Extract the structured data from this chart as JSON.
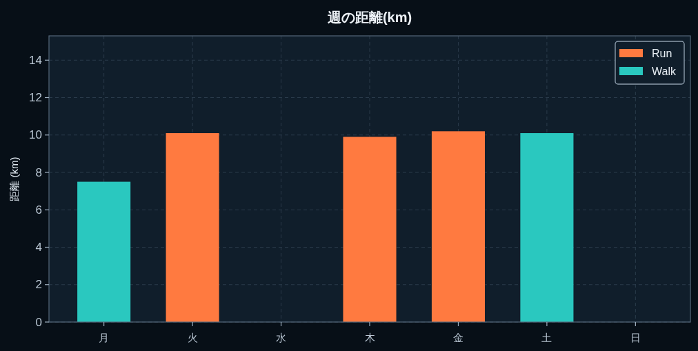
{
  "chart_data": {
    "type": "bar",
    "title": "週の距離(km)",
    "ylabel": "距離 (km)",
    "categories": [
      "月",
      "火",
      "水",
      "木",
      "金",
      "土",
      "日"
    ],
    "series": [
      {
        "name": "Run",
        "color": "#ff7a40",
        "values": [
          null,
          10.1,
          null,
          9.9,
          10.2,
          null,
          null
        ]
      },
      {
        "name": "Walk",
        "color": "#2ac8bf",
        "values": [
          7.5,
          null,
          null,
          null,
          null,
          10.1,
          null
        ]
      }
    ],
    "stacked": true,
    "ylim": [
      0,
      15.3
    ],
    "yticks": [
      0,
      2,
      4,
      6,
      8,
      10,
      12,
      14
    ],
    "grid": true,
    "legend": "top right"
  }
}
